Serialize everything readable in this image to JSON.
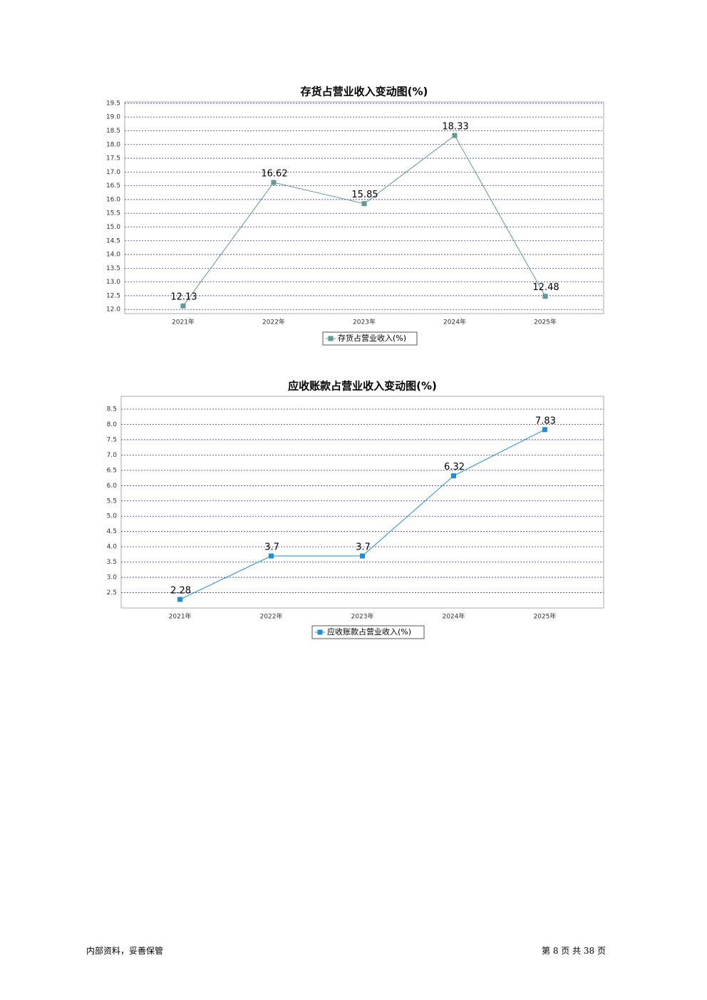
{
  "chart_data": [
    {
      "type": "line",
      "title": "存货占营业收入变动图(%)",
      "categories": [
        "2021年",
        "2022年",
        "2023年",
        "2024年",
        "2025年"
      ],
      "series": [
        {
          "name": "存货占营业收入(%)",
          "color": "#5f9a94",
          "values": [
            12.13,
            16.62,
            15.85,
            18.33,
            12.48
          ]
        }
      ],
      "ylim": [
        11.85,
        19.55
      ],
      "yticks": [
        {
          "value": 12,
          "label": "12.0"
        },
        12.5,
        {
          "value": 13,
          "label": "13.0"
        },
        13.5,
        {
          "value": 14,
          "label": "14.0"
        },
        14.5,
        {
          "value": 15,
          "label": "15.0"
        },
        15.5,
        {
          "value": 16,
          "label": "16.0"
        },
        16.5,
        {
          "value": 17,
          "label": "17.0"
        },
        17.5,
        {
          "value": 18,
          "label": "18.0"
        },
        18.5,
        {
          "value": 19,
          "label": "19.0"
        },
        19.5
      ],
      "grid": true
    },
    {
      "type": "line",
      "title": "应收账款占营业收入变动图(%)",
      "categories": [
        "2021年",
        "2022年",
        "2023年",
        "2024年",
        "2025年"
      ],
      "series": [
        {
          "name": "应收账款占营业收入(%)",
          "color": "#1a8fe0",
          "values": [
            2.28,
            3.7,
            3.7,
            6.32,
            7.83
          ]
        }
      ],
      "ylim": [
        2.0,
        8.92
      ],
      "yticks": [
        2.5,
        {
          "value": 3,
          "label": "3.0"
        },
        3.5,
        {
          "value": 4,
          "label": "4.0"
        },
        4.5,
        {
          "value": 5,
          "label": "5.0"
        },
        5.5,
        {
          "value": 6,
          "label": "6.0"
        },
        6.5,
        {
          "value": 7,
          "label": "7.0"
        },
        7.5,
        {
          "value": 8,
          "label": "8.0"
        },
        8.5
      ],
      "grid": true
    }
  ],
  "footer": {
    "left": "内部资料，妥善保管",
    "right": "第 8 页 共 38 页"
  }
}
